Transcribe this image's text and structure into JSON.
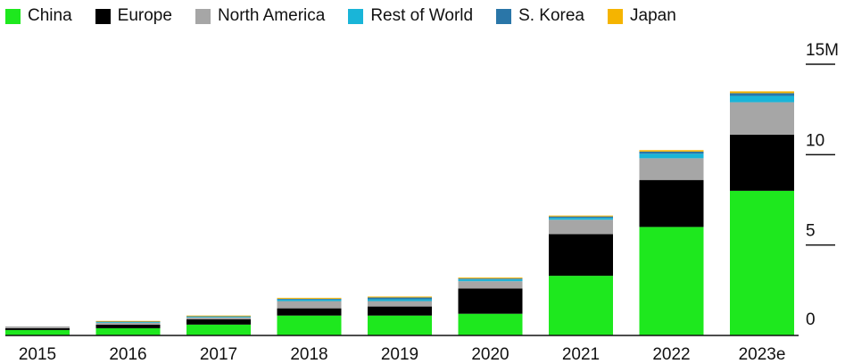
{
  "chart_data": {
    "type": "bar",
    "stacked": true,
    "categories": [
      "2015",
      "2016",
      "2017",
      "2018",
      "2019",
      "2020",
      "2021",
      "2022",
      "2023e"
    ],
    "series": [
      {
        "name": "China",
        "color": "#1ee81e",
        "values": [
          0.3,
          0.4,
          0.6,
          1.1,
          1.1,
          1.2,
          3.3,
          6.0,
          8.0
        ]
      },
      {
        "name": "Europe",
        "color": "#000000",
        "values": [
          0.1,
          0.2,
          0.3,
          0.4,
          0.5,
          1.4,
          2.3,
          2.6,
          3.1
        ]
      },
      {
        "name": "North America",
        "color": "#a6a6a6",
        "values": [
          0.1,
          0.1,
          0.1,
          0.4,
          0.3,
          0.4,
          0.8,
          1.2,
          1.8
        ]
      },
      {
        "name": "Rest of World",
        "color": "#19b5d8",
        "values": [
          0.0,
          0.05,
          0.05,
          0.08,
          0.1,
          0.1,
          0.1,
          0.25,
          0.35
        ]
      },
      {
        "name": "S. Korea",
        "color": "#2a76a8",
        "values": [
          0.0,
          0.03,
          0.03,
          0.05,
          0.1,
          0.05,
          0.08,
          0.12,
          0.15
        ]
      },
      {
        "name": "Japan",
        "color": "#f5b400",
        "values": [
          0.0,
          0.02,
          0.02,
          0.05,
          0.05,
          0.05,
          0.05,
          0.08,
          0.1
        ]
      }
    ],
    "yticks": [
      {
        "value": 0,
        "label": "0"
      },
      {
        "value": 5,
        "label": "5"
      },
      {
        "value": 10,
        "label": "10"
      },
      {
        "value": 15,
        "label": "15M"
      }
    ],
    "ylim": [
      0,
      15
    ],
    "legend_position": "top-left",
    "y_axis_side": "right"
  }
}
